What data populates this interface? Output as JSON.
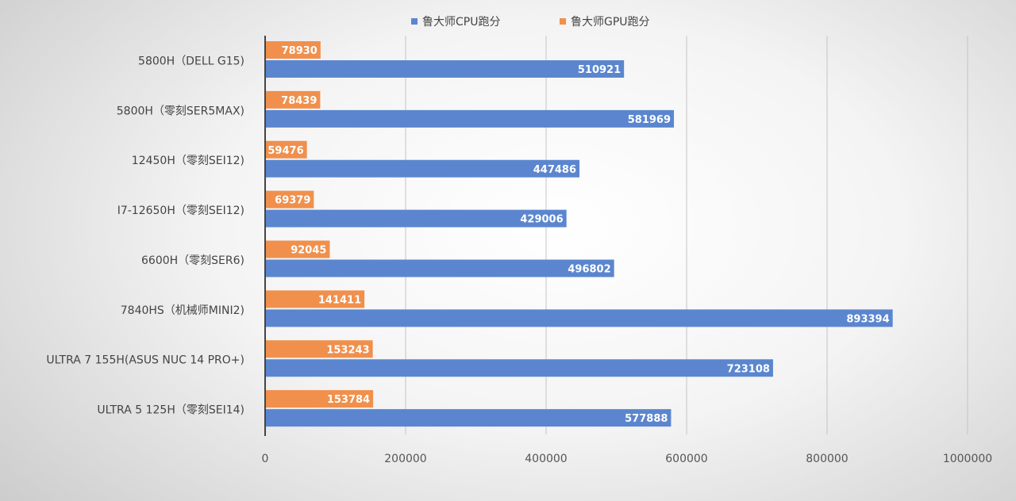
{
  "chart_data": {
    "type": "bar",
    "orientation": "horizontal",
    "title": "",
    "categories": [
      "5800H（DELL G15)",
      "5800H（零刻SER5MAX)",
      "12450H（零刻SEI12)",
      "I7-12650H（零刻SEI12)",
      "6600H（零刻SER6)",
      "7840HS（机械师MINI2)",
      "ULTRA 7 155H(ASUS NUC 14 PRO+)",
      "ULTRA 5 125H（零刻SEI14)"
    ],
    "series": [
      {
        "name": "鲁大师CPU跑分",
        "color": "#5b86cf",
        "values": [
          510921,
          581969,
          447486,
          429006,
          496802,
          893394,
          723108,
          577888
        ]
      },
      {
        "name": "鲁大师GPU跑分",
        "color": "#f0904c",
        "values": [
          78930,
          78439,
          59476,
          69379,
          92045,
          141411,
          153243,
          153784
        ]
      }
    ],
    "xlim": [
      0,
      1000000
    ],
    "xticks": [
      "0",
      "200000",
      "400000",
      "600000",
      "800000",
      "1000000"
    ],
    "grid": true,
    "legend": "top-center",
    "data_labels": true
  }
}
